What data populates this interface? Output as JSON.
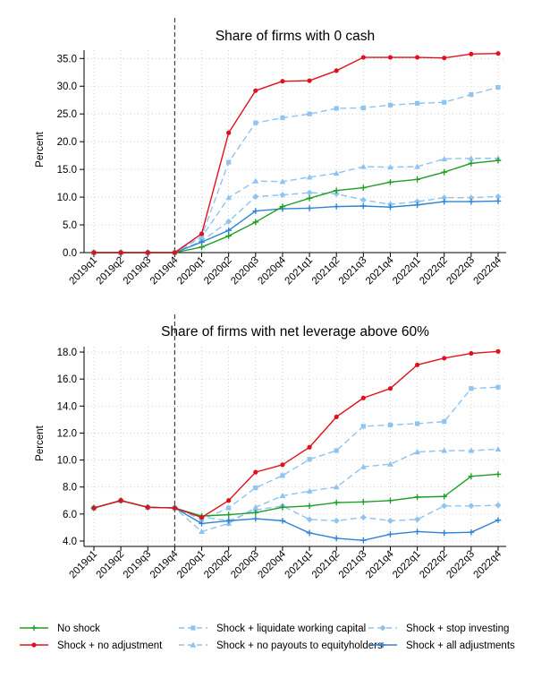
{
  "colors": {
    "no_shock": "#1f9e27",
    "no_adjustment": "#e0111e",
    "liquidate": "#8fc3f0",
    "no_payouts": "#8fc3f0",
    "stop_investing": "#8fc3f0",
    "all_adjustments": "#2f83d3"
  },
  "legend": [
    {
      "label": "No shock",
      "color_key": "no_shock",
      "marker": "plus",
      "dash": false
    },
    {
      "label": "Shock + liquidate working capital",
      "color_key": "liquidate",
      "marker": "square",
      "dash": true
    },
    {
      "label": "Shock + stop investing",
      "color_key": "stop_investing",
      "marker": "diamond",
      "dash": true
    },
    {
      "label": "Shock + no adjustment",
      "color_key": "no_adjustment",
      "marker": "circle",
      "dash": false
    },
    {
      "label": "Shock + no payouts to equityholders",
      "color_key": "no_payouts",
      "marker": "triangle",
      "dash": true
    },
    {
      "label": "Shock + all adjustments",
      "color_key": "all_adjustments",
      "marker": "plus",
      "dash": false
    }
  ],
  "chart_data": [
    {
      "type": "line",
      "title": "Share of firms with 0 cash",
      "xlabel": "",
      "ylabel": "Percent",
      "x": [
        "2019q1",
        "2019q2",
        "2019q3",
        "2019q4",
        "2020q1",
        "2020q2",
        "2020q3",
        "2020q4",
        "2021q1",
        "2021q2",
        "2021q3",
        "2021q4",
        "2022q1",
        "2022q2",
        "2022q3",
        "2022q4"
      ],
      "ylim": [
        0,
        36.5
      ],
      "yticks": [
        "0.0",
        "5.0",
        "10.0",
        "15.0",
        "20.0",
        "25.0",
        "30.0",
        "35.0"
      ],
      "zero_line": true,
      "vline_at": "2019q4",
      "grid": true,
      "series": [
        {
          "name": "Shock + no payouts to equityholders",
          "key": "no_payouts",
          "values": [
            0,
            0,
            0,
            0,
            2.8,
            9.9,
            12.9,
            12.8,
            13.6,
            14.3,
            15.5,
            15.4,
            15.5,
            16.9,
            17.0,
            17.0
          ]
        },
        {
          "name": "Shock + stop investing",
          "key": "stop_investing",
          "values": [
            0,
            0,
            0,
            0,
            2.1,
            5.6,
            10.1,
            10.4,
            10.8,
            10.6,
            9.5,
            8.7,
            9.2,
            9.9,
            9.9,
            10.1
          ]
        },
        {
          "name": "Shock + liquidate working capital",
          "key": "liquidate",
          "values": [
            0,
            0,
            0,
            0,
            2.9,
            16.3,
            23.4,
            24.3,
            25.0,
            26.0,
            26.1,
            26.6,
            26.9,
            27.1,
            28.5,
            29.8
          ]
        },
        {
          "name": "Shock + all adjustments",
          "key": "all_adjustments",
          "values": [
            0,
            0,
            0,
            0,
            1.9,
            4.0,
            7.5,
            7.9,
            8.0,
            8.3,
            8.4,
            8.2,
            8.6,
            9.2,
            9.2,
            9.3
          ]
        },
        {
          "name": "No shock",
          "key": "no_shock",
          "values": [
            0,
            0,
            0,
            0,
            1.0,
            3.0,
            5.5,
            8.3,
            9.8,
            11.2,
            11.7,
            12.7,
            13.2,
            14.5,
            16.1,
            16.6
          ]
        },
        {
          "name": "Shock + no adjustment",
          "key": "no_adjustment",
          "values": [
            0,
            0,
            0,
            0,
            3.4,
            21.6,
            29.2,
            30.9,
            31.0,
            32.8,
            35.2,
            35.2,
            35.2,
            35.1,
            35.8,
            35.9
          ]
        }
      ]
    },
    {
      "type": "line",
      "title": "Share of firms with net leverage above 60%",
      "xlabel": "",
      "ylabel": "Percent",
      "x": [
        "2019q1",
        "2019q2",
        "2019q3",
        "2019q4",
        "2020q1",
        "2020q2",
        "2020q3",
        "2020q4",
        "2021q1",
        "2021q2",
        "2021q3",
        "2021q4",
        "2022q1",
        "2022q2",
        "2022q3",
        "2022q4"
      ],
      "ylim": [
        3.6,
        18.4
      ],
      "yticks": [
        "4.0",
        "6.0",
        "8.0",
        "10.0",
        "12.0",
        "14.0",
        "16.0",
        "18.0"
      ],
      "zero_line": false,
      "vline_at": "2019q4",
      "grid": true,
      "series": [
        {
          "name": "Shock + no payouts to equityholders",
          "key": "no_payouts",
          "values": [
            6.45,
            7.0,
            6.5,
            6.45,
            4.7,
            5.3,
            6.5,
            7.35,
            7.7,
            8.0,
            9.5,
            9.7,
            10.6,
            10.7,
            10.7,
            10.8
          ]
        },
        {
          "name": "Shock + stop investing",
          "key": "stop_investing",
          "values": [
            6.45,
            7.0,
            6.5,
            6.45,
            5.8,
            5.5,
            6.3,
            6.6,
            5.6,
            5.5,
            5.75,
            5.5,
            5.6,
            6.6,
            6.6,
            6.65
          ]
        },
        {
          "name": "Shock + liquidate working capital",
          "key": "liquidate",
          "values": [
            6.45,
            7.0,
            6.5,
            6.45,
            5.6,
            6.45,
            7.95,
            8.85,
            10.05,
            10.7,
            12.5,
            12.6,
            12.7,
            12.85,
            15.3,
            15.4
          ]
        },
        {
          "name": "Shock + all adjustments",
          "key": "all_adjustments",
          "values": [
            6.45,
            7.0,
            6.5,
            6.45,
            5.3,
            5.5,
            5.65,
            5.5,
            4.6,
            4.2,
            4.05,
            4.5,
            4.7,
            4.6,
            4.65,
            5.55
          ]
        },
        {
          "name": "No shock",
          "key": "no_shock",
          "values": [
            6.45,
            7.0,
            6.5,
            6.45,
            5.85,
            5.95,
            6.1,
            6.5,
            6.6,
            6.85,
            6.9,
            7.0,
            7.25,
            7.3,
            8.8,
            8.95
          ]
        },
        {
          "name": "Shock + no adjustment",
          "key": "no_adjustment",
          "values": [
            6.45,
            7.0,
            6.5,
            6.45,
            5.75,
            7.0,
            9.1,
            9.65,
            10.95,
            13.2,
            14.6,
            15.3,
            17.05,
            17.55,
            17.9,
            18.05
          ]
        }
      ]
    }
  ]
}
